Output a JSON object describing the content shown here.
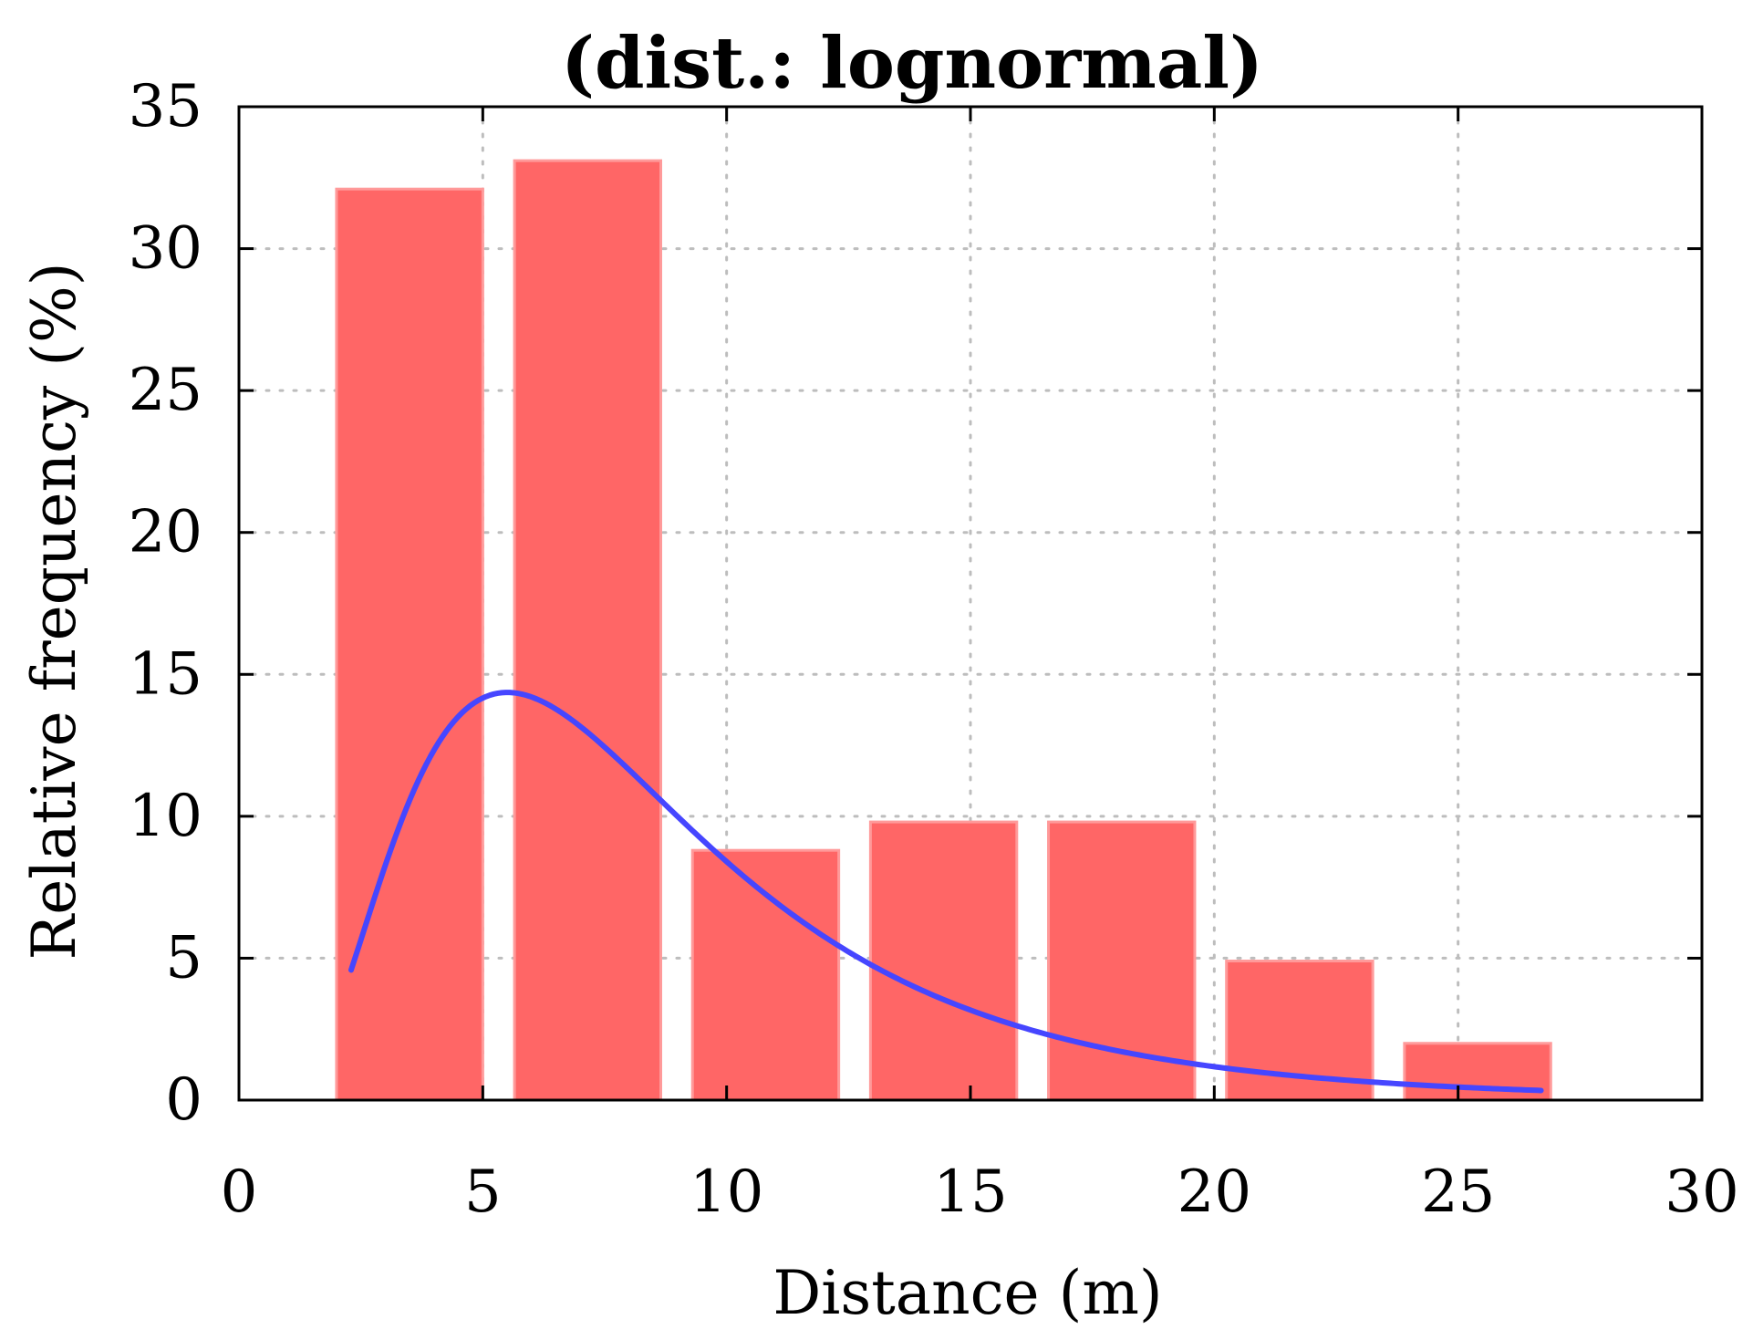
{
  "chart_data": {
    "type": "bar",
    "title": "(dist.: lognormal)",
    "xlabel": "Distance (m)",
    "ylabel": "Relative frequency (%)",
    "xlim": [
      0,
      30
    ],
    "ylim": [
      0,
      35
    ],
    "xticks": [
      0,
      5,
      10,
      15,
      20,
      25,
      30
    ],
    "yticks": [
      0,
      5,
      10,
      15,
      20,
      25,
      30,
      35
    ],
    "grid": true,
    "bins": [
      {
        "start": 2.0,
        "end": 5.0,
        "value": 32.1
      },
      {
        "start": 5.65,
        "end": 8.65,
        "value": 33.1
      },
      {
        "start": 9.3,
        "end": 12.3,
        "value": 8.8
      },
      {
        "start": 12.95,
        "end": 15.95,
        "value": 9.8
      },
      {
        "start": 16.6,
        "end": 19.6,
        "value": 9.8
      },
      {
        "start": 20.25,
        "end": 23.25,
        "value": 4.9
      },
      {
        "start": 23.9,
        "end": 26.9,
        "value": 2.0
      }
    ],
    "fit": {
      "name": "lognormal",
      "mu": 2.038,
      "sigma": 0.577,
      "scale": 135.0,
      "x_range": [
        2.3,
        26.7
      ],
      "color": "#4646ff"
    },
    "bar_color": "#ff6666"
  }
}
